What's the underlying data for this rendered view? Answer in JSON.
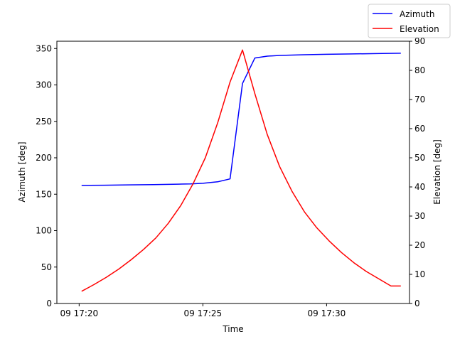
{
  "chart_data": {
    "type": "line",
    "xlabel": "Time",
    "ylabel_left": "Azimuth [deg]",
    "ylabel_right": "Elevation [deg]",
    "x_ticks": [
      "09 17:20",
      "09 17:25",
      "09 17:30"
    ],
    "x_tick_minutes": [
      20,
      25,
      30
    ],
    "x_range_minutes": [
      19.1,
      33.35
    ],
    "ylim_left": [
      0,
      360
    ],
    "ylim_right": [
      0,
      90
    ],
    "left_ticks": [
      0,
      50,
      100,
      150,
      200,
      250,
      300,
      350
    ],
    "right_ticks": [
      0,
      10,
      20,
      30,
      40,
      50,
      60,
      70,
      80,
      90
    ],
    "legend_position": "top-right",
    "grid": false,
    "series": [
      {
        "name": "Azimuth",
        "axis": "left",
        "color": "#0000ff",
        "x_minutes": [
          20.1,
          21.0,
          22.0,
          23.0,
          24.0,
          24.5,
          25.0,
          25.6,
          26.1,
          26.6,
          27.1,
          27.6,
          28.1,
          28.6,
          29.1,
          30.0,
          31.0,
          32.0,
          33.0
        ],
        "values": [
          162,
          162.3,
          162.8,
          163.2,
          163.8,
          164.2,
          165.0,
          167.0,
          171.0,
          302.0,
          337.0,
          339.5,
          340.5,
          341.0,
          341.5,
          342.0,
          342.5,
          343.0,
          343.5
        ]
      },
      {
        "name": "Elevation",
        "axis": "right",
        "color": "#ff0000",
        "x_minutes": [
          20.1,
          20.6,
          21.1,
          21.6,
          22.1,
          22.6,
          23.1,
          23.6,
          24.1,
          24.6,
          25.1,
          25.6,
          26.1,
          26.6,
          27.1,
          27.6,
          28.1,
          28.6,
          29.1,
          29.6,
          30.1,
          30.6,
          31.1,
          31.6,
          32.1,
          32.6,
          33.0
        ],
        "values": [
          4.2,
          6.5,
          9.0,
          11.8,
          15.0,
          18.5,
          22.5,
          27.5,
          33.5,
          41.0,
          50.0,
          62.0,
          76.0,
          87.0,
          72.0,
          58.0,
          47.0,
          38.5,
          31.5,
          26.0,
          21.5,
          17.5,
          14.0,
          11.0,
          8.5,
          6.0,
          6.0
        ]
      }
    ]
  }
}
